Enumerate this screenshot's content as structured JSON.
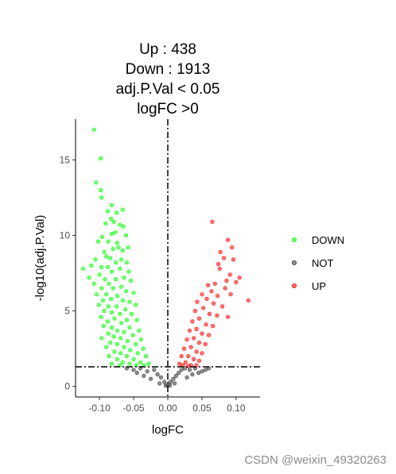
{
  "title_lines": [
    "Up :  438",
    "Down : 1913",
    "adj.P.Val < 0.05",
    "logFC >0"
  ],
  "watermark": "CSDN @weixin_49320263",
  "chart_data": {
    "type": "scatter",
    "title": "Up :  438 / Down : 1913 / adj.P.Val < 0.05 / logFC >0",
    "xlabel": "logFC",
    "ylabel": "-log10(adj.P.Val)",
    "xlim": [
      -0.135,
      0.135
    ],
    "ylim": [
      -0.7,
      17.7
    ],
    "x_ticks": [
      -0.1,
      -0.05,
      0.0,
      0.05,
      0.1
    ],
    "x_tick_labels": [
      "-0.10",
      "-0.05",
      "0.00",
      "0.05",
      "0.10"
    ],
    "y_ticks": [
      0,
      5,
      10,
      15
    ],
    "y_tick_labels": [
      "0",
      "5",
      "10",
      "15"
    ],
    "threshold_lines": {
      "vertical_x": 0.0,
      "horizontal_y": 1.3
    },
    "grid": false,
    "legend_position": "right",
    "counts": {
      "UP": 438,
      "DOWN": 1913
    },
    "series": [
      {
        "name": "DOWN",
        "color": "#00ff00",
        "points": [
          [
            -0.108,
            17.0
          ],
          [
            -0.098,
            15.1
          ],
          [
            -0.105,
            13.5
          ],
          [
            -0.098,
            13.0
          ],
          [
            -0.097,
            12.5
          ],
          [
            -0.082,
            12.0
          ],
          [
            -0.088,
            11.6
          ],
          [
            -0.075,
            11.5
          ],
          [
            -0.083,
            11.1
          ],
          [
            -0.079,
            10.9
          ],
          [
            -0.066,
            11.7
          ],
          [
            -0.07,
            10.7
          ],
          [
            -0.091,
            10.8
          ],
          [
            -0.077,
            10.2
          ],
          [
            -0.065,
            10.6
          ],
          [
            -0.082,
            10.1
          ],
          [
            -0.096,
            9.9
          ],
          [
            -0.087,
            9.6
          ],
          [
            -0.061,
            10.0
          ],
          [
            -0.074,
            9.5
          ],
          [
            -0.102,
            9.6
          ],
          [
            -0.072,
            9.2
          ],
          [
            -0.08,
            9.1
          ],
          [
            -0.093,
            8.9
          ],
          [
            -0.066,
            9.0
          ],
          [
            -0.058,
            9.2
          ],
          [
            -0.09,
            8.6
          ],
          [
            -0.106,
            8.4
          ],
          [
            -0.084,
            8.5
          ],
          [
            -0.068,
            8.4
          ],
          [
            -0.076,
            8.2
          ],
          [
            -0.112,
            8.0
          ],
          [
            -0.06,
            8.2
          ],
          [
            -0.097,
            7.9
          ],
          [
            -0.088,
            7.9
          ],
          [
            -0.124,
            7.8
          ],
          [
            -0.07,
            7.8
          ],
          [
            -0.082,
            7.6
          ],
          [
            -0.1,
            7.4
          ],
          [
            -0.057,
            7.6
          ],
          [
            -0.115,
            7.2
          ],
          [
            -0.092,
            7.1
          ],
          [
            -0.064,
            7.2
          ],
          [
            -0.076,
            7.1
          ],
          [
            -0.108,
            6.8
          ],
          [
            -0.086,
            6.8
          ],
          [
            -0.054,
            7.0
          ],
          [
            -0.097,
            6.5
          ],
          [
            -0.068,
            6.6
          ],
          [
            -0.08,
            6.5
          ],
          [
            -0.061,
            6.3
          ],
          [
            -0.104,
            6.1
          ],
          [
            -0.09,
            6.1
          ],
          [
            -0.05,
            6.2
          ],
          [
            -0.074,
            6.0
          ],
          [
            -0.083,
            5.8
          ],
          [
            -0.095,
            5.7
          ],
          [
            -0.066,
            5.7
          ],
          [
            -0.056,
            5.6
          ],
          [
            -0.101,
            5.4
          ],
          [
            -0.087,
            5.3
          ],
          [
            -0.075,
            5.3
          ],
          [
            -0.047,
            5.4
          ],
          [
            -0.062,
            5.1
          ],
          [
            -0.093,
            5.0
          ],
          [
            -0.082,
            4.9
          ],
          [
            -0.07,
            4.8
          ],
          [
            -0.053,
            4.8
          ],
          [
            -0.098,
            4.6
          ],
          [
            -0.078,
            4.5
          ],
          [
            -0.06,
            4.4
          ],
          [
            -0.088,
            4.3
          ],
          [
            -0.045,
            4.4
          ],
          [
            -0.068,
            4.2
          ],
          [
            -0.094,
            4.0
          ],
          [
            -0.082,
            3.9
          ],
          [
            -0.056,
            3.9
          ],
          [
            -0.074,
            3.7
          ],
          [
            -0.064,
            3.6
          ],
          [
            -0.042,
            3.7
          ],
          [
            -0.087,
            3.5
          ],
          [
            -0.051,
            3.4
          ],
          [
            -0.079,
            3.3
          ],
          [
            -0.097,
            3.2
          ],
          [
            -0.069,
            3.2
          ],
          [
            -0.059,
            3.0
          ],
          [
            -0.039,
            3.1
          ],
          [
            -0.084,
            2.9
          ],
          [
            -0.074,
            2.8
          ],
          [
            -0.047,
            2.8
          ],
          [
            -0.064,
            2.6
          ],
          [
            -0.09,
            2.6
          ],
          [
            -0.055,
            2.4
          ],
          [
            -0.036,
            2.5
          ],
          [
            -0.078,
            2.3
          ],
          [
            -0.069,
            2.2
          ],
          [
            -0.044,
            2.2
          ],
          [
            -0.086,
            2.0
          ],
          [
            -0.06,
            2.0
          ],
          [
            -0.032,
            2.0
          ],
          [
            -0.074,
            1.8
          ],
          [
            -0.05,
            1.8
          ],
          [
            -0.066,
            1.6
          ],
          [
            -0.04,
            1.6
          ],
          [
            -0.082,
            1.5
          ],
          [
            -0.056,
            1.5
          ],
          [
            -0.028,
            1.5
          ],
          [
            -0.046,
            1.4
          ],
          [
            -0.07,
            1.4
          ],
          [
            -0.035,
            1.4
          ]
        ]
      },
      {
        "name": "NOT",
        "color": "#333333",
        "points": [
          [
            -0.06,
            1.2
          ],
          [
            -0.05,
            1.1
          ],
          [
            -0.04,
            1.2
          ],
          [
            -0.03,
            1.0
          ],
          [
            -0.02,
            1.1
          ],
          [
            -0.015,
            0.8
          ],
          [
            -0.01,
            0.6
          ],
          [
            -0.005,
            0.3
          ],
          [
            0.0,
            0.1
          ],
          [
            0.004,
            0.3
          ],
          [
            0.008,
            0.5
          ],
          [
            0.012,
            0.7
          ],
          [
            0.016,
            0.9
          ],
          [
            0.02,
            1.1
          ],
          [
            0.025,
            1.2
          ],
          [
            0.032,
            1.1
          ],
          [
            0.04,
            1.2
          ],
          [
            0.05,
            1.0
          ],
          [
            0.06,
            1.2
          ],
          [
            -0.025,
            0.5
          ],
          [
            -0.035,
            0.7
          ],
          [
            -0.045,
            0.9
          ],
          [
            0.028,
            0.6
          ],
          [
            0.036,
            0.8
          ],
          [
            0.045,
            0.9
          ],
          [
            -0.012,
            0.2
          ],
          [
            0.01,
            0.2
          ],
          [
            -0.003,
            0.05
          ],
          [
            0.003,
            0.05
          ],
          [
            0.055,
            1.1
          ]
        ]
      },
      {
        "name": "UP",
        "color": "#ff0000",
        "points": [
          [
            0.065,
            10.9
          ],
          [
            0.088,
            9.7
          ],
          [
            0.094,
            9.2
          ],
          [
            0.077,
            8.9
          ],
          [
            0.082,
            8.5
          ],
          [
            0.074,
            8.1
          ],
          [
            0.096,
            8.4
          ],
          [
            0.076,
            7.8
          ],
          [
            0.091,
            7.4
          ],
          [
            0.105,
            7.2
          ],
          [
            0.086,
            7.0
          ],
          [
            0.069,
            6.8
          ],
          [
            0.1,
            6.9
          ],
          [
            0.059,
            6.7
          ],
          [
            0.084,
            6.5
          ],
          [
            0.064,
            6.3
          ],
          [
            0.05,
            6.1
          ],
          [
            0.073,
            6.0
          ],
          [
            0.092,
            6.1
          ],
          [
            0.118,
            5.7
          ],
          [
            0.057,
            5.8
          ],
          [
            0.043,
            5.6
          ],
          [
            0.067,
            5.5
          ],
          [
            0.08,
            5.3
          ],
          [
            0.052,
            5.2
          ],
          [
            0.04,
            5.0
          ],
          [
            0.061,
            4.8
          ],
          [
            0.072,
            4.7
          ],
          [
            0.046,
            4.5
          ],
          [
            0.088,
            4.6
          ],
          [
            0.036,
            4.3
          ],
          [
            0.056,
            4.1
          ],
          [
            0.066,
            4.0
          ],
          [
            0.042,
            3.8
          ],
          [
            0.032,
            3.7
          ],
          [
            0.05,
            3.5
          ],
          [
            0.06,
            3.4
          ],
          [
            0.038,
            3.2
          ],
          [
            0.028,
            3.1
          ],
          [
            0.046,
            2.9
          ],
          [
            0.055,
            2.8
          ],
          [
            0.034,
            2.6
          ],
          [
            0.024,
            2.5
          ],
          [
            0.042,
            2.3
          ],
          [
            0.05,
            2.2
          ],
          [
            0.03,
            2.0
          ],
          [
            0.02,
            2.0
          ],
          [
            0.038,
            1.8
          ],
          [
            0.046,
            1.7
          ],
          [
            0.026,
            1.6
          ],
          [
            0.017,
            1.5
          ],
          [
            0.034,
            1.4
          ],
          [
            0.042,
            1.4
          ],
          [
            0.022,
            1.4
          ],
          [
            0.03,
            1.35
          ]
        ]
      }
    ]
  }
}
